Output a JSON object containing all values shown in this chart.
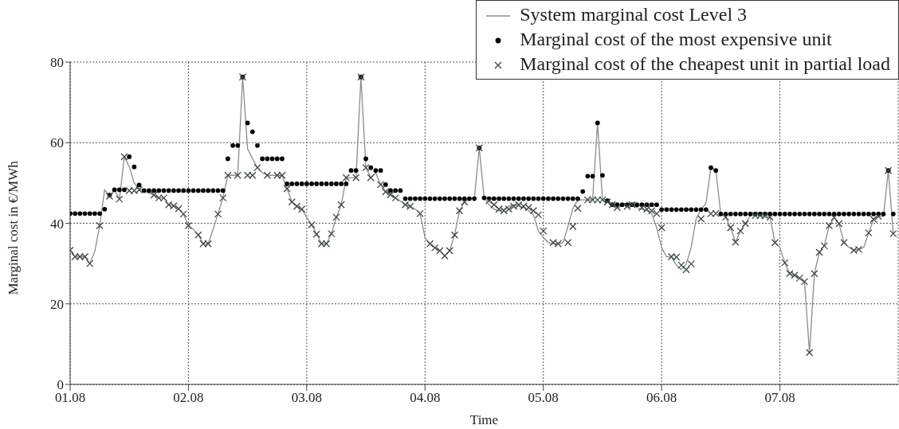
{
  "chart_data": {
    "type": "line",
    "xlabel": "Time",
    "ylabel": "Marginal cost in €/MWh",
    "categories": [
      "01.08",
      null,
      null,
      null,
      null,
      null,
      null,
      null,
      null,
      null,
      null,
      null,
      null,
      null,
      null,
      null,
      null,
      null,
      null,
      null,
      null,
      null,
      null,
      null,
      "02.08",
      null,
      null,
      null,
      null,
      null,
      null,
      null,
      null,
      null,
      null,
      null,
      null,
      null,
      null,
      null,
      null,
      null,
      null,
      null,
      null,
      null,
      null,
      null,
      "03.08",
      null,
      null,
      null,
      null,
      null,
      null,
      null,
      null,
      null,
      null,
      null,
      null,
      null,
      null,
      null,
      null,
      null,
      null,
      null,
      null,
      null,
      null,
      null,
      "04.08",
      null,
      null,
      null,
      null,
      null,
      null,
      null,
      null,
      null,
      null,
      null,
      null,
      null,
      null,
      null,
      null,
      null,
      null,
      null,
      null,
      null,
      null,
      null,
      "05.08",
      null,
      null,
      null,
      null,
      null,
      null,
      null,
      null,
      null,
      null,
      null,
      null,
      null,
      null,
      null,
      null,
      null,
      null,
      null,
      null,
      null,
      null,
      null,
      "06.08",
      null,
      null,
      null,
      null,
      null,
      null,
      null,
      null,
      null,
      null,
      null,
      null,
      null,
      null,
      null,
      null,
      null,
      null,
      null,
      null,
      null,
      null,
      null,
      "07.08",
      null,
      null,
      null,
      null,
      null,
      null,
      null,
      null,
      null,
      null,
      null,
      null,
      null,
      null,
      null,
      null,
      null,
      null,
      null,
      null,
      null,
      null,
      null
    ],
    "ylim": [
      0,
      80
    ],
    "yticks": [
      0,
      20,
      40,
      60,
      80
    ],
    "grid": true,
    "legend": "top right",
    "series": [
      {
        "name": "System marginal cost Level 3",
        "marker": "none",
        "line_style": "solid",
        "color": "#8c8c8c",
        "values": [
          33.3,
          31.7,
          31.7,
          31.7,
          30,
          33,
          39.4,
          48.3,
          46.7,
          48.3,
          46,
          56.5,
          54,
          50,
          48.5,
          48,
          47.5,
          47,
          46.3,
          46.3,
          44.6,
          44.3,
          43.6,
          42.3,
          39.4,
          38.5,
          37.1,
          34.9,
          34.9,
          38.5,
          42.3,
          46.3,
          51.9,
          51.9,
          51.9,
          76.3,
          58.5,
          56,
          53.8,
          52.5,
          51.9,
          51.9,
          51.9,
          51.9,
          48.6,
          45.3,
          44.2,
          43.5,
          41.5,
          39.6,
          37.3,
          34.9,
          34.9,
          37.4,
          41.5,
          44.6,
          51.3,
          51.3,
          51.3,
          76.3,
          53.8,
          51.3,
          52.5,
          49.6,
          47.8,
          47.1,
          46.3,
          45.5,
          44.6,
          44.2,
          43.5,
          42.4,
          36.4,
          34.9,
          33.9,
          33.2,
          31.9,
          33.2,
          37.1,
          43.1,
          45.3,
          46.1,
          46.1,
          58.7,
          46.3,
          44.6,
          43.5,
          43.1,
          43.5,
          44.2,
          44.6,
          44.2,
          43.9,
          43.1,
          42.1,
          38.1,
          36.5,
          35.2,
          34.9,
          34.9,
          35.2,
          39.2,
          43.7,
          45.8,
          45.8,
          45.8,
          45.8,
          64.9,
          45.8,
          45.3,
          44.6,
          43.9,
          44.2,
          44.6,
          44.6,
          43.9,
          43.5,
          43.1,
          42.4,
          38.9,
          34,
          31.7,
          31.6,
          29.6,
          28.5,
          29.9,
          34,
          41.1,
          43.4,
          45,
          53.8,
          53.1,
          42.4,
          41.5,
          38.9,
          35.3,
          38.1,
          39.9,
          41.9,
          41.9,
          41.9,
          41.5,
          41.5,
          35.2,
          34,
          30.2,
          27.5,
          27.1,
          26.4,
          25.5,
          7.9,
          27.5,
          32.8,
          34.4,
          39.4,
          41.4,
          39.9,
          35.2,
          34,
          33.3,
          33.5,
          34,
          37.6,
          41,
          41.7,
          41.7,
          53.1,
          37.4
        ]
      },
      {
        "name": "Marginal cost of the most expensive unit",
        "type": "scatter",
        "marker": "circle",
        "color": "#000000",
        "values": [
          42.4,
          42.4,
          42.4,
          42.4,
          42.4,
          42.4,
          42.4,
          43.5,
          47,
          48.3,
          48.3,
          48.3,
          56.5,
          54,
          49.5,
          48.1,
          48.1,
          48.1,
          48.1,
          48.1,
          48.1,
          48.1,
          48.1,
          48.1,
          48.1,
          48.1,
          48.1,
          48.1,
          48.1,
          48.1,
          48.1,
          48.1,
          56,
          59.3,
          59.3,
          76.3,
          64.9,
          62.7,
          59.3,
          56,
          56,
          56,
          56,
          56,
          49.8,
          49.8,
          49.8,
          49.8,
          49.8,
          49.8,
          49.8,
          49.8,
          49.8,
          49.8,
          49.8,
          49.8,
          49.8,
          53.1,
          53.1,
          76.3,
          56,
          53.8,
          53.1,
          53.1,
          49.6,
          48.1,
          48.1,
          48.1,
          46.1,
          46.1,
          46.1,
          46.1,
          46.1,
          46.1,
          46.1,
          46.1,
          46.1,
          46.1,
          46.1,
          46.1,
          46.1,
          46.1,
          46.1,
          58.7,
          46.3,
          46.1,
          46.1,
          46.1,
          46.1,
          46.1,
          46.1,
          46.1,
          46.1,
          46.1,
          46.1,
          46.1,
          46.1,
          46.1,
          46.1,
          46.1,
          46.1,
          46.1,
          46.1,
          46.1,
          47.9,
          51.7,
          51.7,
          64.9,
          51.9,
          45.6,
          44.6,
          44.6,
          44.6,
          44.6,
          44.6,
          44.6,
          44.6,
          44.6,
          44.6,
          44.6,
          43.4,
          43.4,
          43.4,
          43.4,
          43.4,
          43.4,
          43.4,
          43.4,
          43.4,
          43.4,
          53.8,
          53.1,
          42.3,
          42.3,
          42.3,
          42.3,
          42.3,
          42.3,
          42.3,
          42.3,
          42.3,
          42.3,
          42.3,
          42.3,
          42.3,
          42.3,
          42.3,
          42.3,
          42.3,
          42.3,
          42.3,
          42.3,
          42.3,
          42.3,
          42.3,
          42.3,
          42.3,
          42.3,
          42.3,
          42.3,
          42.3,
          42.3,
          42.3,
          42.3,
          42.3,
          42.3,
          53.1,
          42.3
        ]
      },
      {
        "name": "Marginal cost of the cheapest unit in partial load",
        "type": "scatter",
        "marker": "cross",
        "color": "#3a4846",
        "values": [
          33.3,
          31.7,
          31.7,
          31.7,
          30,
          null,
          39.4,
          null,
          46.7,
          null,
          46,
          56.5,
          48.1,
          48.1,
          48.3,
          null,
          null,
          47,
          46.3,
          46.3,
          44.6,
          44.3,
          43.6,
          42.3,
          39.4,
          null,
          37.1,
          34.9,
          34.9,
          null,
          42.3,
          46.3,
          51.9,
          null,
          51.9,
          76.3,
          51.9,
          51.9,
          53.8,
          null,
          51.9,
          null,
          51.9,
          51.9,
          48.6,
          45.3,
          44.2,
          43.5,
          null,
          39.6,
          37.3,
          34.9,
          34.9,
          37.4,
          41.5,
          44.6,
          51.3,
          null,
          51.3,
          76.3,
          53.8,
          51.3,
          null,
          49.6,
          47.8,
          47.1,
          46.3,
          null,
          44.6,
          44.2,
          null,
          42.4,
          null,
          34.9,
          33.9,
          33.2,
          31.9,
          33.2,
          37.1,
          43.1,
          45.3,
          null,
          null,
          58.7,
          null,
          45.6,
          44.6,
          43.5,
          43.1,
          43.5,
          44.2,
          44.6,
          44.2,
          43.9,
          43.1,
          42.1,
          38.1,
          null,
          35.2,
          34.9,
          null,
          35.2,
          39.2,
          43.7,
          null,
          45.8,
          45.8,
          45.8,
          45.8,
          45.3,
          44.6,
          43.9,
          null,
          44.2,
          44.6,
          null,
          43.9,
          43.5,
          43.1,
          42.4,
          38.9,
          null,
          31.7,
          31.6,
          29.6,
          28.5,
          29.9,
          null,
          41.1,
          null,
          42.4,
          42.4,
          null,
          41.5,
          38.9,
          35.3,
          38.1,
          39.9,
          null,
          41.9,
          41.9,
          41.9,
          41.5,
          35.2,
          null,
          30.2,
          27.5,
          27.1,
          26.4,
          25.5,
          7.9,
          27.5,
          32.8,
          34.4,
          39.4,
          41.4,
          39.9,
          35.2,
          null,
          33.3,
          33.5,
          null,
          37.6,
          41,
          41.7,
          null,
          53.1,
          37.4
        ]
      }
    ]
  }
}
